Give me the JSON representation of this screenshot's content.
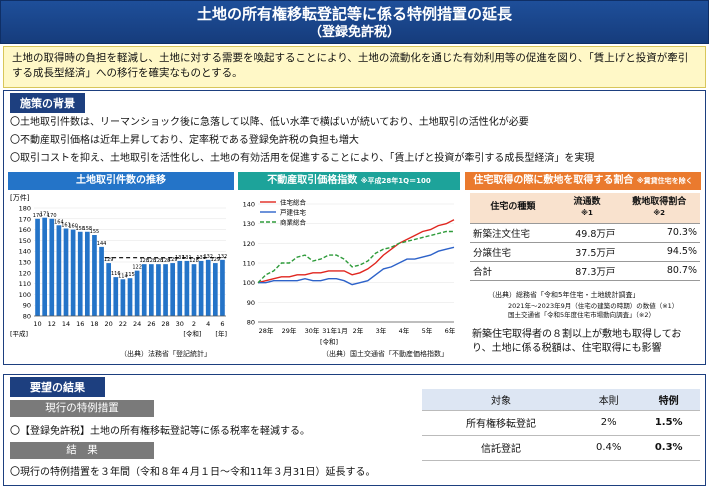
{
  "title": {
    "line1": "土地の所有権移転登記等に係る特例措置の延長",
    "line2": "（登録免許税）"
  },
  "summary": "土地の取得時の負担を軽減し、土地に対する需要を喚起することにより、土地の流動化を通じた有効利用等の促進を図り、「賃上げと投資が牽引する成長型経済」への移行を確実なものとする。",
  "background": {
    "heading": "施策の背景",
    "bullets": [
      "〇土地取引件数は、リーマンショック後に急落して以降、低い水準で横ばいが続いており、土地取引の活性化が必要",
      "〇不動産取引価格は近年上昇しており、定率税である登録免許税の負担も増大",
      "〇取引コストを抑え、土地取引を活性化し、土地の有効活用を促進することにより、「賃上げと投資が牽引する成長型経済」を実現"
    ]
  },
  "chart_data": [
    {
      "type": "bar",
      "title": "土地取引件数の推移",
      "ylabel": "[万件]",
      "ylim": [
        80,
        180
      ],
      "yticks": [
        "180",
        "170",
        "160",
        "150",
        "140",
        "130",
        "120",
        "110",
        "100",
        "90",
        "80"
      ],
      "categories": [
        "H10",
        "H11",
        "H12",
        "H13",
        "H14",
        "H15",
        "H16",
        "H17",
        "H18",
        "H19",
        "H20",
        "H21",
        "H22",
        "H23",
        "H24",
        "H25",
        "H26",
        "H27",
        "H28",
        "H29",
        "H30",
        "R1",
        "R2",
        "R3",
        "R4",
        "R5",
        "R6"
      ],
      "values": [
        170,
        171,
        170,
        164,
        161,
        160,
        158,
        158,
        155,
        144,
        129,
        116,
        114,
        115,
        122,
        128,
        128,
        128,
        128,
        129,
        131,
        131,
        128,
        131,
        132,
        129,
        132
      ],
      "reference_line": 134,
      "xticks": [
        "10",
        "12",
        "14",
        "16",
        "18",
        "20",
        "22",
        "24",
        "26",
        "28",
        "30",
        "2",
        "4",
        "6"
      ],
      "era_labels": [
        "[平成]",
        "[令和]",
        "[年]"
      ],
      "source": "（出典）法務省「登記統計」"
    },
    {
      "type": "line",
      "title": "不動産取引価格指数",
      "subtitle": "※平成28年1Q＝100",
      "ylim": [
        80,
        140
      ],
      "yticks": [
        "140",
        "130",
        "120",
        "110",
        "100",
        "90",
        "80"
      ],
      "xticks": [
        "28年",
        "29年",
        "30年",
        "31年1月",
        "2年",
        "3年",
        "4年",
        "5年",
        "6年"
      ],
      "era_label": "[令和]",
      "series": [
        {
          "name": "住宅総合",
          "color": "#e0261f",
          "values": [
            100,
            101,
            102,
            103,
            103,
            104,
            104,
            105,
            105,
            106,
            106,
            106,
            104,
            105,
            107,
            110,
            114,
            117,
            120,
            122,
            124,
            126,
            127,
            129,
            130,
            132
          ]
        },
        {
          "name": "戸建住宅",
          "color": "#2d62c9",
          "values": [
            100,
            100,
            101,
            101,
            101,
            101,
            102,
            101,
            101,
            102,
            102,
            101,
            99,
            100,
            101,
            104,
            107,
            108,
            110,
            112,
            112,
            113,
            114,
            116,
            117,
            118
          ]
        },
        {
          "name": "商業総合",
          "color": "#2e9b3a",
          "values": [
            100,
            104,
            106,
            110,
            110,
            113,
            114,
            111,
            112,
            114,
            114,
            112,
            108,
            109,
            111,
            115,
            117,
            118,
            120,
            121,
            122,
            123,
            124,
            125,
            126,
            126
          ]
        }
      ],
      "source": "（出典）国土交通省「不動産価格指数」"
    }
  ],
  "land_table": {
    "heading": "住宅取得の際に敷地を取得する割合",
    "heading_note": "※賃貸住宅を除く",
    "columns": [
      "住宅の種類",
      "流通数",
      "※1",
      "敷地取得割合",
      "※2"
    ],
    "rows": [
      [
        "新築注文住宅",
        "49.8万戸",
        "70.3%"
      ],
      [
        "分譲住宅",
        "37.5万戸",
        "94.5%"
      ],
      [
        "合計",
        "87.3万戸",
        "80.7%"
      ]
    ],
    "sources": [
      "（出典）総務省「令和5年住宅・土地統計調査」",
      "2021年～2023年9月（住宅の建築の時期）の数値（※1）",
      "国土交通省「令和5年度住宅市場動向調査」（※2）"
    ]
  },
  "land_note": "新築住宅取得者の８割以上が敷地も取得しており、土地に係る税額は、住宅取得にも影響",
  "results": {
    "heading": "要望の結果",
    "current_heading": "現行の特例措置",
    "current_text": "〇【登録免許税】土地の所有権移転登記等に係る税率を軽減する。",
    "result_heading": "結　果",
    "result_text": "〇現行の特例措置を３年間（令和８年４月１日～令和11年３月31日）延長する。",
    "table": {
      "columns": [
        "対象",
        "本則",
        "特例"
      ],
      "rows": [
        [
          "所有権移転登記",
          "2%",
          "1.5%"
        ],
        [
          "信託登記",
          "0.4%",
          "0.3%"
        ]
      ]
    }
  }
}
